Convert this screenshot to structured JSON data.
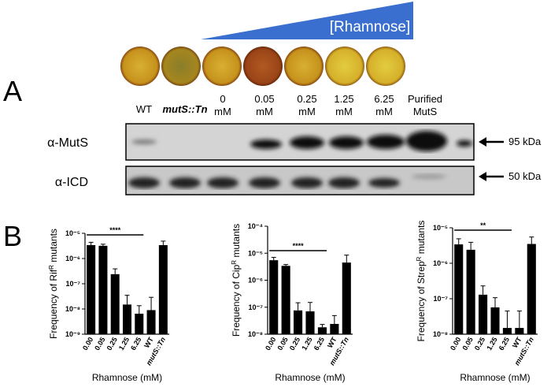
{
  "panel_a": {
    "letter": "A",
    "gradient_label": "[Rhamnose]",
    "lanes": [
      [
        "WT"
      ],
      [
        "mutS::Tn"
      ],
      [
        "0",
        "mM"
      ],
      [
        "0.05",
        "mM"
      ],
      [
        "0.25",
        "mM"
      ],
      [
        "1.25",
        "mM"
      ],
      [
        "6.25",
        "mM"
      ],
      [
        "Purified",
        "MutS"
      ]
    ],
    "rows": [
      {
        "label": "α-MutS",
        "marker": "95 kDa"
      },
      {
        "label": "α-ICD",
        "marker": "50 kDa"
      }
    ]
  },
  "panel_b": {
    "letter": "B"
  },
  "chart_data": [
    {
      "type": "bar",
      "log_scale": true,
      "ylabel_parts": [
        "Frequency of Rif",
        "R",
        " mutants"
      ],
      "xlabel": "Rhamnose (mM)",
      "categories": [
        "0.00",
        "0.05",
        "0.25",
        "1.25",
        "6.25",
        "WT",
        "mutS::Tn"
      ],
      "values": [
        3.4e-06,
        3.2e-06,
        2.4e-07,
        1.5e-08,
        6.5e-09,
        9e-09,
        3.4e-06
      ],
      "errors": [
        1e-06,
        5e-07,
        1.5e-07,
        2e-08,
        7e-09,
        2e-08,
        1.5e-06
      ],
      "color": "#000000",
      "ylim": [
        1e-09,
        1e-05
      ],
      "yticks": [
        {
          "value": 1e-09,
          "label": "10⁻⁹"
        },
        {
          "value": 1e-08,
          "label": "10⁻⁸"
        },
        {
          "value": 1e-07,
          "label": "10⁻⁷"
        },
        {
          "value": 1e-06,
          "label": "10⁻⁶"
        },
        {
          "value": 1e-05,
          "label": "10⁻⁵"
        }
      ],
      "annotation": "****"
    },
    {
      "type": "bar",
      "log_scale": true,
      "ylabel_parts": [
        "Frequency of Cip",
        "R",
        " mutants"
      ],
      "xlabel": "Rhamnose (mM)",
      "categories": [
        "0.00",
        "0.05",
        "0.25",
        "1.25",
        "6.25",
        "WT",
        "mutS::Tn"
      ],
      "values": [
        5.5e-06,
        3.4e-06,
        7.6e-08,
        7e-08,
        1.8e-08,
        2.4e-08,
        4.5e-06
      ],
      "errors": [
        1.5e-06,
        4e-07,
        7e-08,
        8e-08,
        5e-09,
        2.5e-08,
        4e-06
      ],
      "color": "#000000",
      "ylim": [
        1e-08,
        0.0001
      ],
      "yticks": [
        {
          "value": 1e-08,
          "label": "10⁻⁸"
        },
        {
          "value": 1e-07,
          "label": "10⁻⁷"
        },
        {
          "value": 1e-06,
          "label": "10⁻⁶"
        },
        {
          "value": 1e-05,
          "label": "10⁻⁵"
        },
        {
          "value": 0.0001,
          "label": "10⁻⁴"
        }
      ],
      "annotation": "****"
    },
    {
      "type": "bar",
      "log_scale": true,
      "ylabel_parts": [
        "Frequency of Strep",
        "R",
        " mutants"
      ],
      "xlabel": "Rhamnose (mM)",
      "categories": [
        "0.00",
        "0.05",
        "0.25",
        "1.25",
        "6.25",
        "WT",
        "mutS::Tn"
      ],
      "values": [
        3.4e-06,
        2.4e-06,
        1.3e-07,
        5.7e-08,
        1.5e-08,
        1.5e-08,
        3.5e-06
      ],
      "errors": [
        1.5e-06,
        1.5e-06,
        1e-07,
        5e-08,
        3e-08,
        3e-08,
        2e-06
      ],
      "color": "#000000",
      "ylim": [
        1e-08,
        1e-05
      ],
      "yticks": [
        {
          "value": 1e-08,
          "label": "10⁻⁸"
        },
        {
          "value": 1e-07,
          "label": "10⁻⁷"
        },
        {
          "value": 1e-06,
          "label": "10⁻⁶"
        },
        {
          "value": 1e-05,
          "label": "10⁻⁵"
        }
      ],
      "annotation": "**"
    }
  ]
}
